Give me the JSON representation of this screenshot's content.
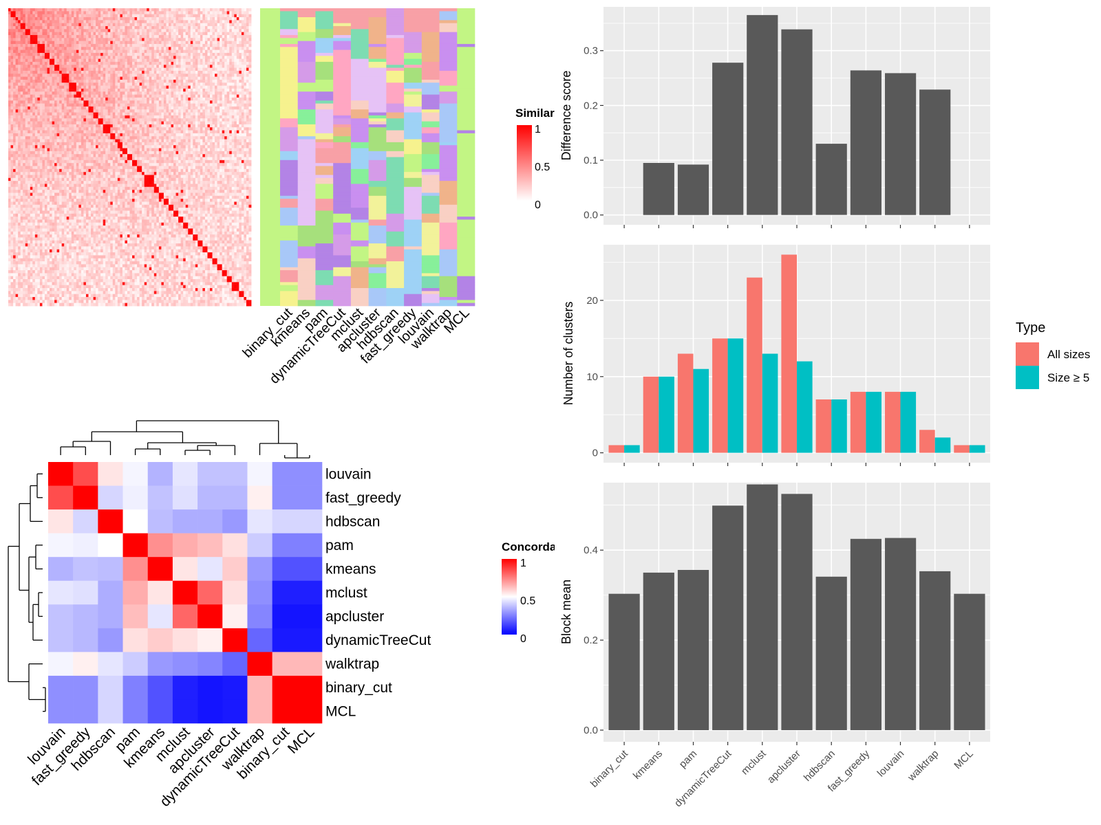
{
  "chart_data": [
    {
      "id": "similarity-heatmap",
      "type": "heatmap",
      "legend": {
        "title": "Similarity",
        "ticks": [
          "1",
          "0.5",
          "0"
        ],
        "colors": [
          "#ffffff",
          "#ff0000"
        ]
      },
      "blocks": [
        {
          "start": 0.0,
          "end": 0.012
        },
        {
          "start": 0.012,
          "end": 0.035
        },
        {
          "start": 0.035,
          "end": 0.045
        },
        {
          "start": 0.045,
          "end": 0.055
        },
        {
          "start": 0.055,
          "end": 0.068
        },
        {
          "start": 0.068,
          "end": 0.09
        },
        {
          "start": 0.09,
          "end": 0.095
        },
        {
          "start": 0.095,
          "end": 0.12
        },
        {
          "start": 0.12,
          "end": 0.155
        },
        {
          "start": 0.155,
          "end": 0.175
        },
        {
          "start": 0.175,
          "end": 0.19
        },
        {
          "start": 0.19,
          "end": 0.21
        },
        {
          "start": 0.21,
          "end": 0.225
        },
        {
          "start": 0.225,
          "end": 0.255
        },
        {
          "start": 0.255,
          "end": 0.285
        },
        {
          "start": 0.285,
          "end": 0.3
        },
        {
          "start": 0.3,
          "end": 0.31
        },
        {
          "start": 0.31,
          "end": 0.335
        },
        {
          "start": 0.335,
          "end": 0.355
        },
        {
          "start": 0.355,
          "end": 0.37
        },
        {
          "start": 0.37,
          "end": 0.39
        },
        {
          "start": 0.39,
          "end": 0.42
        },
        {
          "start": 0.42,
          "end": 0.44
        },
        {
          "start": 0.44,
          "end": 0.455
        },
        {
          "start": 0.455,
          "end": 0.47
        },
        {
          "start": 0.47,
          "end": 0.49
        },
        {
          "start": 0.49,
          "end": 0.51
        },
        {
          "start": 0.51,
          "end": 0.53
        },
        {
          "start": 0.53,
          "end": 0.55
        },
        {
          "start": 0.55,
          "end": 0.565
        },
        {
          "start": 0.565,
          "end": 0.6
        },
        {
          "start": 0.6,
          "end": 0.625
        },
        {
          "start": 0.625,
          "end": 0.645
        },
        {
          "start": 0.645,
          "end": 0.66
        },
        {
          "start": 0.66,
          "end": 0.68
        },
        {
          "start": 0.68,
          "end": 0.7
        },
        {
          "start": 0.7,
          "end": 0.72
        },
        {
          "start": 0.72,
          "end": 0.74
        },
        {
          "start": 0.74,
          "end": 0.76
        },
        {
          "start": 0.76,
          "end": 0.78
        },
        {
          "start": 0.78,
          "end": 0.8
        },
        {
          "start": 0.8,
          "end": 0.82
        },
        {
          "start": 0.82,
          "end": 0.84
        },
        {
          "start": 0.84,
          "end": 0.86
        },
        {
          "start": 0.86,
          "end": 0.88
        },
        {
          "start": 0.88,
          "end": 0.9
        },
        {
          "start": 0.9,
          "end": 0.92
        },
        {
          "start": 0.92,
          "end": 0.955
        },
        {
          "start": 0.955,
          "end": 0.97
        },
        {
          "start": 0.97,
          "end": 0.985
        },
        {
          "start": 0.985,
          "end": 1.0
        }
      ]
    },
    {
      "id": "cluster-assignment-heatmap",
      "type": "heatmap",
      "columns": [
        "binary_cut",
        "kmeans",
        "pam",
        "dynamicTreeCut",
        "mclust",
        "apcluster",
        "hdbscan",
        "fast_greedy",
        "louvain",
        "walktrap",
        "MCL"
      ],
      "background_color": "#c2f584",
      "palette": [
        "#c2f584",
        "#f8a0a6",
        "#a6e07c",
        "#d59be8",
        "#87f09a",
        "#f9d0c4",
        "#a8c8f8",
        "#f2f29a",
        "#ffa6c2",
        "#b383e6",
        "#7ddcb2",
        "#f0b38a",
        "#9ed2f6",
        "#e6c2f6",
        "#f6f28e",
        "#c98ff0"
      ]
    },
    {
      "id": "concordance-heatmap",
      "type": "heatmap",
      "labels": [
        "louvain",
        "fast_greedy",
        "hdbscan",
        "pam",
        "kmeans",
        "mclust",
        "apcluster",
        "dynamicTreeCut",
        "walktrap",
        "binary_cut",
        "MCL"
      ],
      "values": [
        [
          1.0,
          0.85,
          0.55,
          0.48,
          0.35,
          0.45,
          0.38,
          0.38,
          0.48,
          0.28,
          0.28
        ],
        [
          0.85,
          1.0,
          0.42,
          0.47,
          0.38,
          0.44,
          0.36,
          0.36,
          0.53,
          0.28,
          0.28
        ],
        [
          0.55,
          0.42,
          1.0,
          0.5,
          0.37,
          0.34,
          0.34,
          0.3,
          0.45,
          0.42,
          0.42
        ],
        [
          0.48,
          0.47,
          0.5,
          1.0,
          0.72,
          0.66,
          0.63,
          0.56,
          0.4,
          0.25,
          0.25
        ],
        [
          0.35,
          0.38,
          0.37,
          0.72,
          1.0,
          0.55,
          0.45,
          0.6,
          0.3,
          0.16,
          0.16
        ],
        [
          0.45,
          0.44,
          0.34,
          0.66,
          0.55,
          1.0,
          0.8,
          0.56,
          0.28,
          0.06,
          0.06
        ],
        [
          0.38,
          0.36,
          0.34,
          0.63,
          0.45,
          0.8,
          1.0,
          0.53,
          0.26,
          0.04,
          0.04
        ],
        [
          0.38,
          0.36,
          0.3,
          0.56,
          0.6,
          0.56,
          0.53,
          1.0,
          0.2,
          0.05,
          0.05
        ],
        [
          0.48,
          0.53,
          0.45,
          0.4,
          0.3,
          0.28,
          0.26,
          0.2,
          1.0,
          0.64,
          0.64
        ],
        [
          0.28,
          0.28,
          0.42,
          0.25,
          0.16,
          0.06,
          0.04,
          0.05,
          0.64,
          1.0,
          1.0
        ],
        [
          0.28,
          0.28,
          0.42,
          0.25,
          0.16,
          0.06,
          0.04,
          0.05,
          0.64,
          1.0,
          1.0
        ]
      ],
      "legend": {
        "title": "Concordance",
        "ticks": [
          "1",
          "0.5",
          "0"
        ],
        "colors": [
          "#0000ff",
          "#ffffff",
          "#ff0000"
        ]
      }
    },
    {
      "id": "difference-score-chart",
      "type": "bar",
      "categories": [
        "binary_cut",
        "kmeans",
        "pam",
        "dynamicTreeCut",
        "mclust",
        "apcluster",
        "hdbscan",
        "fast_greedy",
        "louvain",
        "walktrap",
        "MCL"
      ],
      "values": [
        0,
        0.095,
        0.092,
        0.278,
        0.365,
        0.339,
        0.13,
        0.264,
        0.259,
        0.229,
        0
      ],
      "ylabel": "Difference score",
      "yticks": [
        "0.0",
        "0.1",
        "0.2",
        "0.3"
      ],
      "ylim": [
        -0.018,
        0.38
      ],
      "bar_color": "#595959",
      "panel_color": "#ebebeb"
    },
    {
      "id": "number-of-clusters-chart",
      "type": "bar",
      "categories": [
        "binary_cut",
        "kmeans",
        "pam",
        "dynamicTreeCut",
        "mclust",
        "apcluster",
        "hdbscan",
        "fast_greedy",
        "louvain",
        "walktrap",
        "MCL"
      ],
      "series": [
        {
          "name": "All sizes",
          "color": "#f8766d",
          "values": [
            1,
            10,
            13,
            15,
            23,
            26,
            7,
            8,
            8,
            3,
            1
          ]
        },
        {
          "name": "Size ≥ 5",
          "color": "#00bfc4",
          "values": [
            1,
            10,
            11,
            15,
            13,
            12,
            7,
            8,
            8,
            2,
            1
          ]
        }
      ],
      "ylabel": "Number of clusters",
      "yticks": [
        "0",
        "10",
        "20"
      ],
      "ylim": [
        -1.3,
        27.3
      ],
      "legend": {
        "title": "Type",
        "position": "right"
      },
      "panel_color": "#ebebeb"
    },
    {
      "id": "block-mean-chart",
      "type": "bar",
      "categories": [
        "binary_cut",
        "kmeans",
        "pam",
        "dynamicTreeCut",
        "mclust",
        "apcluster",
        "hdbscan",
        "fast_greedy",
        "louvain",
        "walktrap",
        "MCL"
      ],
      "values": [
        0.303,
        0.35,
        0.356,
        0.499,
        0.546,
        0.525,
        0.341,
        0.425,
        0.427,
        0.353,
        0.303
      ],
      "ylabel": "Block mean",
      "yticks": [
        "0.0",
        "0.2",
        "0.4"
      ],
      "ylim": [
        -0.026,
        0.55
      ],
      "bar_color": "#595959",
      "panel_color": "#ebebeb"
    }
  ]
}
